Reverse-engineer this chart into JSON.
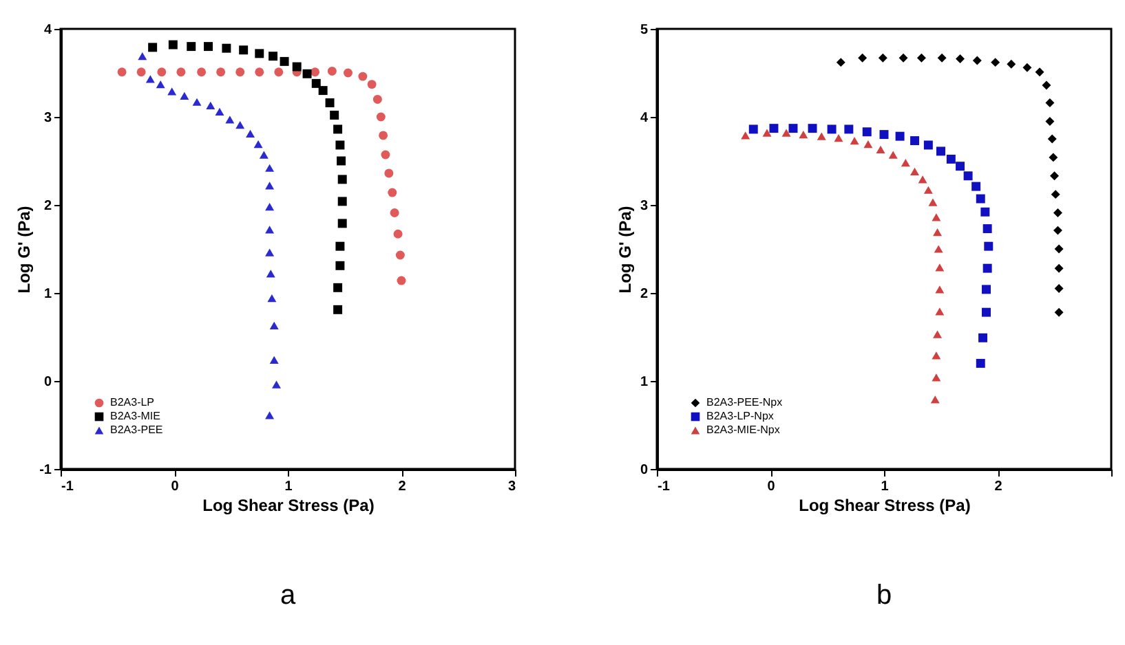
{
  "chart_data": [
    {
      "type": "scatter",
      "title": "a",
      "xlabel": "Log Shear Stress (Pa)",
      "ylabel": "Log G' (Pa)",
      "xlim": [
        -1,
        3
      ],
      "xticks": [
        -1,
        0,
        1,
        2,
        3
      ],
      "ylim": [
        -1,
        4
      ],
      "yticks": [
        -1,
        0,
        1,
        2,
        3,
        4
      ],
      "legend": "bottom left",
      "grid": false,
      "series": [
        {
          "name": "B2A3-LP",
          "color": "#e05a5a",
          "marker": "circle",
          "x": [
            -0.46,
            -0.29,
            -0.11,
            0.06,
            0.24,
            0.41,
            0.58,
            0.75,
            0.92,
            1.08,
            1.24,
            1.39,
            1.53,
            1.66,
            1.74,
            1.79,
            1.82,
            1.84,
            1.86,
            1.89,
            1.92,
            1.94,
            1.97,
            1.99,
            2.0
          ],
          "values": [
            3.51,
            3.51,
            3.51,
            3.51,
            3.51,
            3.51,
            3.51,
            3.51,
            3.51,
            3.51,
            3.51,
            3.52,
            3.5,
            3.46,
            3.37,
            3.2,
            3.0,
            2.79,
            2.57,
            2.36,
            2.14,
            1.91,
            1.67,
            1.43,
            1.14
          ]
        },
        {
          "name": "B2A3-MIE",
          "color": "#000000",
          "marker": "square",
          "x": [
            -0.19,
            -0.01,
            0.15,
            0.3,
            0.46,
            0.61,
            0.75,
            0.87,
            0.97,
            1.08,
            1.17,
            1.25,
            1.31,
            1.37,
            1.41,
            1.44,
            1.46,
            1.47,
            1.48,
            1.48,
            1.48,
            1.46,
            1.46,
            1.44,
            1.44
          ],
          "values": [
            3.79,
            3.82,
            3.8,
            3.8,
            3.78,
            3.76,
            3.72,
            3.69,
            3.63,
            3.57,
            3.49,
            3.38,
            3.3,
            3.16,
            3.02,
            2.86,
            2.68,
            2.5,
            2.29,
            2.04,
            1.79,
            1.53,
            1.31,
            1.06,
            0.81
          ]
        },
        {
          "name": "B2A3-PEE",
          "color": "#2a2ad0",
          "marker": "triangle",
          "x": [
            -0.28,
            -0.21,
            -0.12,
            -0.02,
            0.09,
            0.2,
            0.32,
            0.4,
            0.49,
            0.58,
            0.67,
            0.74,
            0.79,
            0.84,
            0.84,
            0.84,
            0.84,
            0.84,
            0.85,
            0.86,
            0.88,
            0.88,
            0.9,
            0.84
          ],
          "values": [
            3.69,
            3.43,
            3.37,
            3.29,
            3.24,
            3.17,
            3.13,
            3.06,
            2.97,
            2.91,
            2.81,
            2.69,
            2.57,
            2.42,
            2.22,
            1.98,
            1.72,
            1.46,
            1.22,
            0.94,
            0.63,
            0.24,
            -0.04,
            -0.39
          ]
        }
      ]
    },
    {
      "type": "scatter",
      "title": "b",
      "xlabel": "Log Shear Stress (Pa)",
      "ylabel": "Log G' (Pa)",
      "xlim": [
        -1,
        3
      ],
      "xticks": [
        -1,
        0,
        1,
        2,
        {
          "value": 3,
          "label": null
        }
      ],
      "ylim": [
        0,
        5
      ],
      "yticks": [
        0,
        1,
        2,
        3,
        4,
        5
      ],
      "legend": "bottom left",
      "grid": false,
      "series": [
        {
          "name": "B2A3-PEE-Npx",
          "color": "#000000",
          "marker": "diamond",
          "x": [
            0.62,
            0.81,
            0.99,
            1.17,
            1.33,
            1.51,
            1.67,
            1.82,
            1.98,
            2.12,
            2.26,
            2.37,
            2.43,
            2.46,
            2.46,
            2.48,
            2.49,
            2.5,
            2.51,
            2.53,
            2.53,
            2.54,
            2.54,
            2.54,
            2.54
          ],
          "values": [
            4.62,
            4.67,
            4.67,
            4.67,
            4.67,
            4.67,
            4.66,
            4.64,
            4.62,
            4.6,
            4.56,
            4.51,
            4.36,
            4.16,
            3.95,
            3.75,
            3.54,
            3.33,
            3.12,
            2.91,
            2.71,
            2.5,
            2.28,
            2.05,
            1.78
          ]
        },
        {
          "name": "B2A3-LP-Npx",
          "color": "#1010c0",
          "marker": "square",
          "x": [
            -0.15,
            0.03,
            0.2,
            0.37,
            0.54,
            0.69,
            0.85,
            1.0,
            1.14,
            1.27,
            1.39,
            1.5,
            1.59,
            1.67,
            1.74,
            1.81,
            1.85,
            1.89,
            1.91,
            1.92,
            1.91,
            1.9,
            1.9,
            1.87,
            1.85
          ],
          "values": [
            3.86,
            3.87,
            3.87,
            3.87,
            3.86,
            3.86,
            3.83,
            3.8,
            3.78,
            3.73,
            3.68,
            3.61,
            3.52,
            3.44,
            3.33,
            3.21,
            3.07,
            2.92,
            2.73,
            2.53,
            2.28,
            2.04,
            1.78,
            1.49,
            1.2
          ]
        },
        {
          "name": "B2A3-MIE-Npx",
          "color": "#d04040",
          "marker": "triangle",
          "x": [
            -0.22,
            -0.03,
            0.14,
            0.29,
            0.45,
            0.6,
            0.74,
            0.86,
            0.97,
            1.08,
            1.19,
            1.27,
            1.34,
            1.39,
            1.43,
            1.46,
            1.47,
            1.48,
            1.49,
            1.49,
            1.49,
            1.47,
            1.46,
            1.46,
            1.45
          ],
          "values": [
            3.79,
            3.82,
            3.82,
            3.8,
            3.78,
            3.76,
            3.73,
            3.69,
            3.63,
            3.57,
            3.48,
            3.38,
            3.29,
            3.17,
            3.03,
            2.86,
            2.69,
            2.5,
            2.29,
            2.04,
            1.79,
            1.53,
            1.29,
            1.04,
            0.79
          ]
        }
      ]
    }
  ]
}
